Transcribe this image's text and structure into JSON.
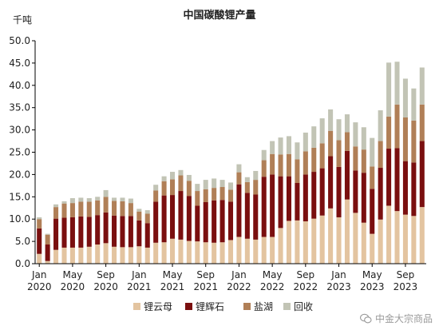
{
  "chart_data": {
    "type": "stacked-bar",
    "title": "中国碳酸锂产量",
    "unit_label": "千吨",
    "ylim": [
      0,
      50
    ],
    "y_ticks": [
      "0.0",
      "5.0",
      "10.0",
      "15.0",
      "20.0",
      "25.0",
      "30.0",
      "35.0",
      "40.0",
      "45.0",
      "50.0"
    ],
    "grid": false,
    "legend_position": "bottom",
    "x_tick_labels": [
      {
        "index": 0,
        "line1": "Jan",
        "line2": "2020"
      },
      {
        "index": 4,
        "line1": "May",
        "line2": "2020"
      },
      {
        "index": 8,
        "line1": "Sep",
        "line2": "2020"
      },
      {
        "index": 12,
        "line1": "Jan",
        "line2": "2021"
      },
      {
        "index": 16,
        "line1": "May",
        "line2": "2021"
      },
      {
        "index": 20,
        "line1": "Sep",
        "line2": "2021"
      },
      {
        "index": 24,
        "line1": "Jan",
        "line2": "2022"
      },
      {
        "index": 28,
        "line1": "May",
        "line2": "2022"
      },
      {
        "index": 32,
        "line1": "Sep",
        "line2": "2022"
      },
      {
        "index": 36,
        "line1": "Jan",
        "line2": "2023"
      },
      {
        "index": 40,
        "line1": "May",
        "line2": "2023"
      },
      {
        "index": 44,
        "line1": "Sep",
        "line2": "2023"
      }
    ],
    "categories": [
      "2020-01",
      "2020-02",
      "2020-03",
      "2020-04",
      "2020-05",
      "2020-06",
      "2020-07",
      "2020-08",
      "2020-09",
      "2020-10",
      "2020-11",
      "2020-12",
      "2021-01",
      "2021-02",
      "2021-03",
      "2021-04",
      "2021-05",
      "2021-06",
      "2021-07",
      "2021-08",
      "2021-09",
      "2021-10",
      "2021-11",
      "2021-12",
      "2022-01",
      "2022-02",
      "2022-03",
      "2022-04",
      "2022-05",
      "2022-06",
      "2022-07",
      "2022-08",
      "2022-09",
      "2022-10",
      "2022-11",
      "2022-12",
      "2023-01",
      "2023-02",
      "2023-03",
      "2023-04",
      "2023-05",
      "2023-06",
      "2023-07",
      "2023-08",
      "2023-09",
      "2023-10",
      "2023-11"
    ],
    "series": [
      {
        "name": "锂云母",
        "color": "#e3c4a0",
        "values": [
          2.2,
          0.6,
          3.1,
          3.6,
          3.6,
          3.6,
          3.8,
          4.3,
          4.6,
          3.8,
          3.7,
          3.7,
          3.9,
          3.6,
          4.7,
          4.8,
          5.6,
          5.4,
          5.1,
          5.0,
          4.8,
          4.7,
          4.8,
          5.3,
          6.0,
          5.6,
          5.4,
          6.0,
          6.0,
          8.0,
          9.6,
          9.7,
          9.5,
          10.1,
          10.8,
          12.4,
          10.4,
          14.4,
          11.4,
          9.2,
          6.7,
          9.9,
          13.0,
          11.8,
          11.0,
          10.7,
          12.7
        ]
      },
      {
        "name": "锂辉石",
        "color": "#7a0f0f",
        "values": [
          5.7,
          3.7,
          7.0,
          6.7,
          6.8,
          7.0,
          6.7,
          6.6,
          6.9,
          7.0,
          7.0,
          7.0,
          5.8,
          5.5,
          9.2,
          10.5,
          9.8,
          10.9,
          10.1,
          8.0,
          9.0,
          9.5,
          9.5,
          8.6,
          11.8,
          10.3,
          10.1,
          13.5,
          14.0,
          11.6,
          10.0,
          8.4,
          10.5,
          10.5,
          10.6,
          11.7,
          11.3,
          10.9,
          9.5,
          11.2,
          10.1,
          11.6,
          12.8,
          14.1,
          12.0,
          12.0,
          14.8
        ]
      },
      {
        "name": "盐湖",
        "color": "#b07f57",
        "values": [
          2.1,
          2.2,
          2.6,
          3.2,
          3.2,
          3.3,
          3.4,
          3.3,
          3.5,
          3.3,
          3.3,
          2.9,
          2.0,
          2.1,
          2.5,
          3.2,
          3.5,
          3.5,
          3.4,
          3.3,
          2.9,
          2.8,
          2.9,
          2.7,
          2.7,
          2.4,
          3.3,
          3.7,
          4.6,
          4.9,
          5.0,
          5.3,
          5.2,
          5.4,
          5.6,
          5.7,
          6.0,
          4.2,
          5.4,
          5.2,
          5.0,
          6.0,
          7.2,
          9.8,
          9.8,
          9.4,
          8.2
        ]
      },
      {
        "name": "回收",
        "color": "#c2c4b5",
        "values": [
          0.4,
          0.2,
          0.6,
          0.5,
          1.1,
          0.9,
          0.8,
          0.8,
          1.5,
          0.7,
          0.8,
          1.0,
          0.6,
          0.8,
          1.3,
          1.1,
          1.7,
          1.2,
          1.3,
          1.6,
          2.1,
          2.1,
          1.6,
          1.6,
          1.8,
          1.1,
          2.0,
          2.3,
          2.9,
          3.8,
          4.0,
          3.8,
          4.2,
          4.8,
          5.6,
          4.8,
          4.7,
          4.0,
          5.4,
          5.0,
          6.4,
          6.9,
          12.1,
          9.6,
          8.7,
          7.2,
          8.3
        ]
      }
    ]
  },
  "watermark": {
    "text": "中金大宗商品"
  }
}
